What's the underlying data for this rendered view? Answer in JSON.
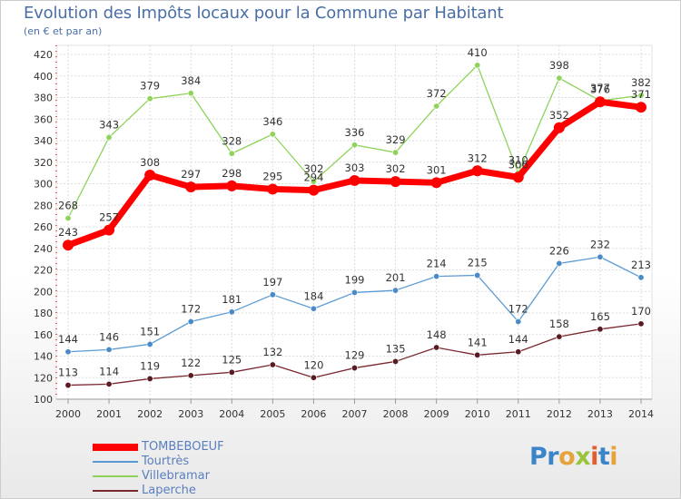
{
  "header": {
    "title": "Evolution des Impôts locaux pour la Commune par Habitant",
    "subtitle": "(en € et par an)"
  },
  "logo": {
    "text": "Proxiti",
    "colors": [
      "#3a84c9",
      "#3a84c9",
      "#e8a23a",
      "#9ac43c",
      "#e25d2f",
      "#3a84c9",
      "#e8a23a"
    ]
  },
  "chart_data": {
    "type": "line",
    "title": "Evolution des Impôts locaux pour la Commune par Habitant",
    "subtitle": "(en € et par an)",
    "x": [
      "2000",
      "2001",
      "2002",
      "2003",
      "2004",
      "2005",
      "2006",
      "2007",
      "2008",
      "2009",
      "2010",
      "2011",
      "2012",
      "2013",
      "2014"
    ],
    "ylim": [
      100,
      420
    ],
    "yticks": [
      100,
      120,
      140,
      160,
      180,
      200,
      220,
      240,
      260,
      280,
      300,
      320,
      340,
      360,
      380,
      400,
      420
    ],
    "grid": true,
    "legend_position": "bottom-left",
    "series": [
      {
        "name": "TOMBEBOEUF",
        "color": "#ff0000",
        "values": [
          243,
          257,
          308,
          297,
          298,
          295,
          294,
          303,
          302,
          301,
          312,
          306,
          352,
          376,
          371
        ]
      },
      {
        "name": "Tourtrès",
        "color": "#5b9bd5",
        "values": [
          144,
          146,
          151,
          172,
          181,
          197,
          184,
          199,
          201,
          214,
          215,
          172,
          226,
          232,
          213
        ]
      },
      {
        "name": "Villebramar",
        "color": "#8fd35a",
        "values": [
          268,
          343,
          379,
          384,
          328,
          346,
          302,
          336,
          329,
          372,
          410,
          310,
          398,
          377,
          382
        ]
      },
      {
        "name": "Laperche",
        "color": "#7a2830",
        "values": [
          113,
          114,
          119,
          122,
          125,
          132,
          120,
          129,
          135,
          148,
          141,
          144,
          158,
          165,
          170
        ]
      }
    ]
  }
}
